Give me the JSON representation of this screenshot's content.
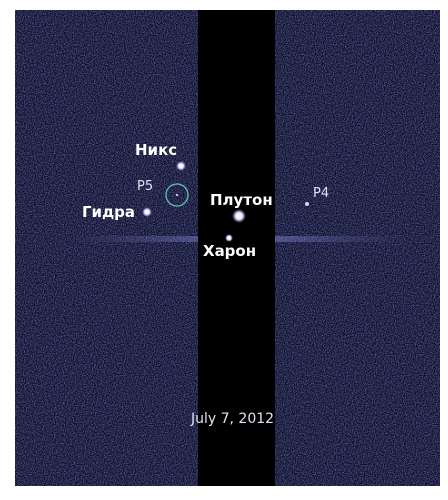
{
  "objects": [
    {
      "label": "Никс"
    },
    {
      "label": "P5"
    },
    {
      "label": "Гидра"
    },
    {
      "label": "Плутон"
    },
    {
      "label": "P4"
    },
    {
      "label": "Харон"
    }
  ],
  "date": "July 7, 2012"
}
